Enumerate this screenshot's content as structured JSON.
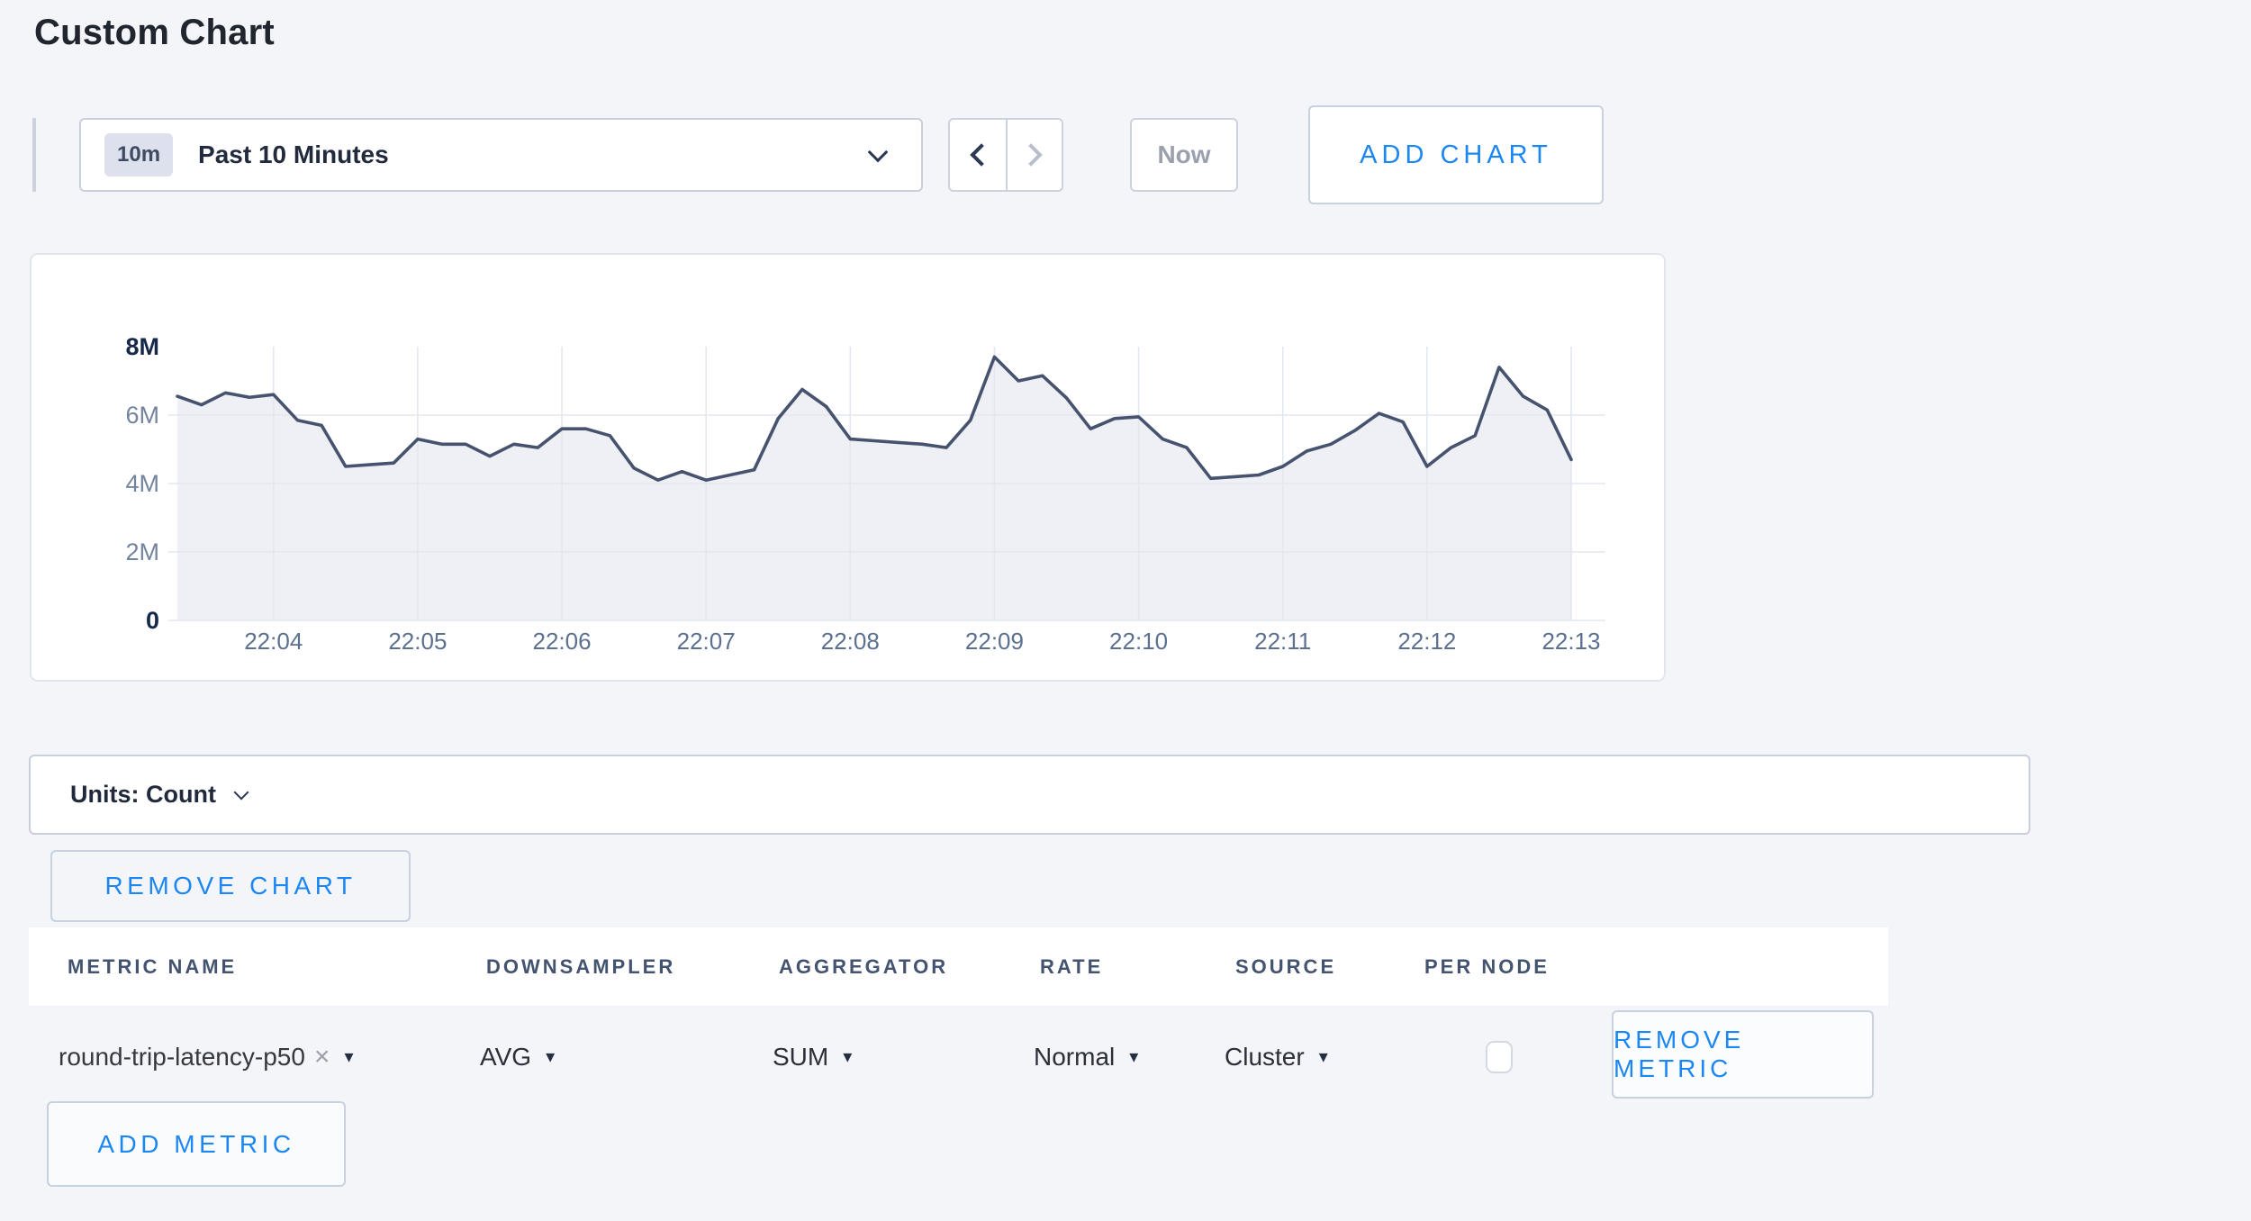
{
  "page_title": "Custom Chart",
  "toolbar": {
    "time_range_badge": "10m",
    "time_range_label": "Past 10 Minutes",
    "prev_icon_name": "chevron-left-icon",
    "next_icon_name": "chevron-right-icon",
    "now_label": "Now",
    "add_chart_label": "ADD CHART"
  },
  "chart_data": {
    "type": "area",
    "title": "",
    "unit": "Count",
    "series_name": "round-trip-latency-p50 (AVG, SUM of Cluster)",
    "start_time": "22:03:20",
    "interval_seconds": 10,
    "values_millions": [
      6.55,
      6.3,
      6.65,
      6.52,
      6.6,
      5.85,
      5.7,
      4.5,
      4.55,
      4.6,
      5.3,
      5.15,
      5.15,
      4.8,
      5.15,
      5.05,
      5.6,
      5.6,
      5.4,
      4.45,
      4.1,
      4.35,
      4.1,
      4.25,
      4.4,
      5.9,
      6.75,
      6.25,
      5.3,
      5.25,
      5.2,
      5.15,
      5.05,
      5.85,
      7.7,
      7.0,
      7.15,
      6.5,
      5.6,
      5.9,
      5.95,
      5.3,
      5.05,
      4.15,
      4.2,
      4.25,
      4.5,
      4.95,
      5.15,
      5.55,
      6.05,
      5.8,
      4.5,
      5.05,
      5.4,
      7.4,
      6.55,
      6.15,
      4.7
    ],
    "x_tick_labels": [
      "22:04",
      "22:05",
      "22:06",
      "22:07",
      "22:08",
      "22:09",
      "22:10",
      "22:11",
      "22:12",
      "22:13"
    ],
    "x_tick_indices": [
      4,
      10,
      16,
      22,
      28,
      34,
      40,
      46,
      52,
      58
    ],
    "y_ticks": [
      {
        "label": "8M",
        "value": 8,
        "strong": true
      },
      {
        "label": "6M",
        "value": 6,
        "strong": false
      },
      {
        "label": "4M",
        "value": 4,
        "strong": false
      },
      {
        "label": "2M",
        "value": 2,
        "strong": false
      },
      {
        "label": "0",
        "value": 0,
        "strong": true
      }
    ],
    "y_gridline_values": [
      6,
      4,
      2,
      0
    ],
    "ylim_millions": [
      0,
      8
    ],
    "grid": true,
    "legend": "none"
  },
  "units_bar": {
    "label": "Units: Count"
  },
  "remove_chart_label": "REMOVE CHART",
  "metrics_table": {
    "columns": [
      "METRIC NAME",
      "DOWNSAMPLER",
      "AGGREGATOR",
      "RATE",
      "SOURCE",
      "PER NODE"
    ],
    "rows": [
      {
        "metric_name": "round-trip-latency-p50",
        "clear_icon": "×",
        "dropdown_icon": "▾",
        "downsampler": "AVG",
        "aggregator": "SUM",
        "rate": "Normal",
        "source": "Cluster",
        "per_node_checked": false,
        "remove_label": "REMOVE METRIC"
      }
    ],
    "add_metric_label": "ADD METRIC"
  },
  "colors": {
    "page_background": "#f4f5f9",
    "card_background": "#ffffff",
    "accent_blue": "#1c87f2",
    "line_color": "#47536e",
    "area_fill": "#e4e7ef",
    "gridline": "#e3e7ef",
    "axis_strong": "#16294b",
    "axis_weak": "#74839e",
    "x_axis_label": "#5c7090",
    "header_text": "#44536f"
  }
}
